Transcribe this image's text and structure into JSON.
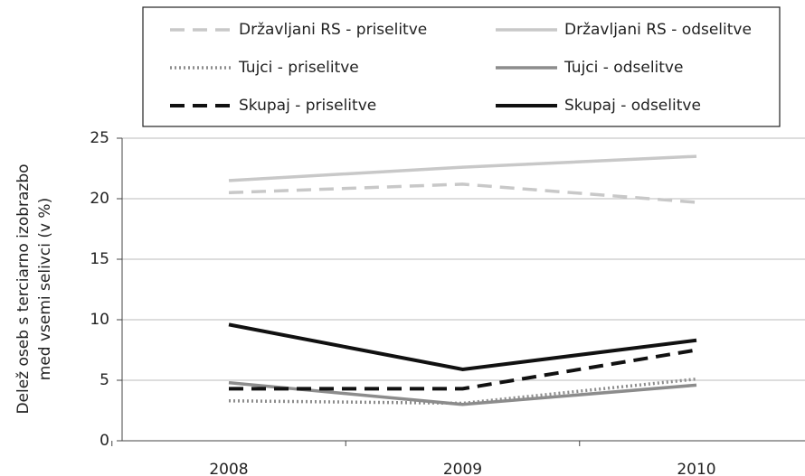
{
  "chart_data": {
    "type": "line",
    "ylabel": [
      "Delež oseb s terciarno izobrazbo",
      "med vsemi selivci (v %)"
    ],
    "categories": [
      "2008",
      "2009",
      "2010"
    ],
    "series": [
      {
        "name": "Državljani RS - priselitve",
        "color": "#c8c8c8",
        "style": "dashed",
        "values": [
          20.5,
          21.2,
          19.7
        ]
      },
      {
        "name": "Državljani RS - odselitve",
        "color": "#c8c8c8",
        "style": "solid",
        "values": [
          21.5,
          22.6,
          23.5
        ]
      },
      {
        "name": "Tujci - priselitve",
        "color": "#8c8c8c",
        "style": "dotted",
        "values": [
          3.3,
          3.1,
          5.1
        ]
      },
      {
        "name": "Tujci - odselitve",
        "color": "#8c8c8c",
        "style": "solid",
        "values": [
          4.8,
          3.0,
          4.6
        ]
      },
      {
        "name": "Skupaj - priselitve",
        "color": "#111111",
        "style": "dashed",
        "values": [
          4.3,
          4.3,
          7.5
        ]
      },
      {
        "name": "Skupaj - odselitve",
        "color": "#111111",
        "style": "solid",
        "values": [
          9.6,
          5.9,
          8.3
        ]
      }
    ],
    "ylim": [
      0,
      25
    ],
    "yticks": [
      0,
      5,
      10,
      15,
      20,
      25
    ],
    "grid": true
  }
}
